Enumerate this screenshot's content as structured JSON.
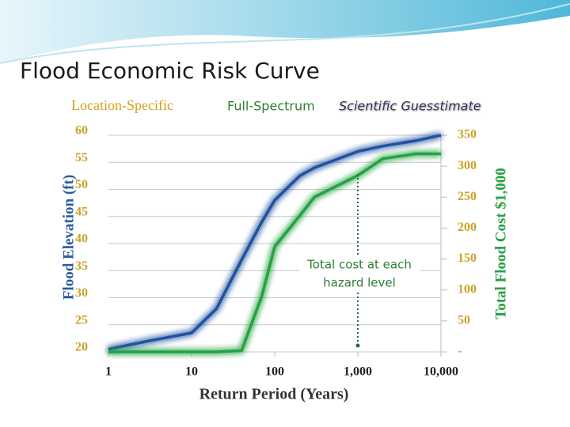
{
  "title": "Flood Economic Risk Curve",
  "subtitle": [
    "Location-Specific",
    "Full-Spectrum",
    "Scientific Guesstimate"
  ],
  "chart_data": {
    "type": "line",
    "x": [
      1,
      3,
      10,
      20,
      40,
      70,
      100,
      200,
      300,
      1000,
      2000,
      5000,
      10000
    ],
    "xscale": "log",
    "xlim": [
      1,
      10000
    ],
    "xticks": [
      1,
      10,
      100,
      {
        "value": 1000,
        "label": "1,000"
      },
      {
        "value": 10000,
        "label": "10,000"
      }
    ],
    "xlabel": "Return Period (Years)",
    "ylabel": "Flood Elevation (ft)",
    "ylim": [
      20,
      60
    ],
    "yticks": [
      20,
      25,
      30,
      35,
      40,
      45,
      50,
      55,
      60
    ],
    "y2label": "Total Flood Cost $1,000",
    "y2lim": [
      0,
      350
    ],
    "y2ticks": [
      {
        "value": 0,
        "label": "-"
      },
      50,
      100,
      150,
      200,
      250,
      300,
      350
    ],
    "grid": true,
    "series": [
      {
        "name": "Flood Elevation",
        "color": "#24519f",
        "values": [
          20.5,
          22,
          23.5,
          28,
          37,
          44,
          48,
          52.5,
          54,
          57,
          58,
          59,
          60
        ]
      },
      {
        "name": "Total Flood Cost",
        "color": "#27a143",
        "axis": "y2",
        "values": [
          0,
          0,
          0,
          0,
          2,
          90,
          170,
          220,
          250,
          285,
          312,
          320,
          320
        ]
      }
    ],
    "annotation": [
      "Total cost at each",
      "hazard level"
    ]
  }
}
